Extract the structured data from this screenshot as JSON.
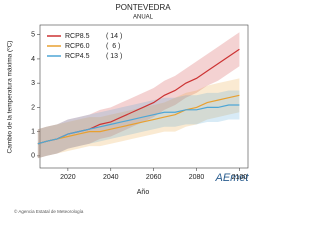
{
  "chart_data": {
    "type": "line",
    "title": "PONTEVEDRA",
    "subtitle": "ANUAL",
    "y_label": "Cambio de la temperatura máxima (ºC)",
    "x_label": "Año",
    "x": [
      2006,
      2010,
      2015,
      2020,
      2025,
      2030,
      2035,
      2040,
      2045,
      2050,
      2055,
      2060,
      2065,
      2070,
      2075,
      2080,
      2085,
      2090,
      2095,
      2100
    ],
    "xlim": [
      2007,
      2104
    ],
    "xticks": [
      2020,
      2040,
      2060,
      2080,
      2100
    ],
    "ylim": [
      -0.5,
      5.4
    ],
    "yticks": [
      0,
      1,
      2,
      3,
      4,
      5
    ],
    "series": [
      {
        "name": "RCP8.5",
        "count_label": "( 14 )",
        "color": "#cc3333",
        "values": [
          0.5,
          0.6,
          0.7,
          0.9,
          1.0,
          1.1,
          1.3,
          1.4,
          1.6,
          1.8,
          2.0,
          2.2,
          2.5,
          2.7,
          3.0,
          3.2,
          3.5,
          3.8,
          4.1,
          4.4
        ],
        "upper": [
          1.1,
          1.2,
          1.3,
          1.5,
          1.6,
          1.7,
          1.9,
          2.0,
          2.2,
          2.4,
          2.6,
          2.8,
          3.1,
          3.3,
          3.6,
          3.9,
          4.2,
          4.5,
          4.8,
          5.1
        ],
        "lower": [
          -0.1,
          0.0,
          0.1,
          0.3,
          0.4,
          0.5,
          0.7,
          0.8,
          1.0,
          1.2,
          1.4,
          1.6,
          1.9,
          2.1,
          2.4,
          2.6,
          2.9,
          3.1,
          3.4,
          3.7
        ]
      },
      {
        "name": "RCP6.0",
        "count_label": "(  6 )",
        "color": "#e8a030",
        "values": [
          0.5,
          0.6,
          0.7,
          0.8,
          0.9,
          1.0,
          1.0,
          1.1,
          1.2,
          1.3,
          1.4,
          1.5,
          1.6,
          1.7,
          1.9,
          2.0,
          2.2,
          2.3,
          2.4,
          2.5
        ],
        "upper": [
          1.1,
          1.2,
          1.3,
          1.4,
          1.5,
          1.6,
          1.6,
          1.7,
          1.8,
          1.9,
          2.0,
          2.1,
          2.2,
          2.4,
          2.6,
          2.7,
          2.9,
          3.0,
          3.1,
          3.2
        ],
        "lower": [
          -0.1,
          0.0,
          0.1,
          0.2,
          0.3,
          0.4,
          0.4,
          0.5,
          0.6,
          0.7,
          0.8,
          0.9,
          1.0,
          1.0,
          1.2,
          1.3,
          1.5,
          1.6,
          1.7,
          1.8
        ]
      },
      {
        "name": "RCP4.5",
        "count_label": "( 13 )",
        "color": "#4da6d6",
        "values": [
          0.5,
          0.6,
          0.7,
          0.9,
          1.0,
          1.1,
          1.2,
          1.3,
          1.4,
          1.5,
          1.6,
          1.7,
          1.8,
          1.8,
          1.9,
          1.9,
          2.0,
          2.0,
          2.1,
          2.1
        ],
        "upper": [
          1.1,
          1.2,
          1.3,
          1.5,
          1.6,
          1.7,
          1.8,
          1.9,
          2.0,
          2.1,
          2.2,
          2.3,
          2.4,
          2.4,
          2.5,
          2.5,
          2.6,
          2.6,
          2.7,
          2.7
        ],
        "lower": [
          -0.1,
          0.0,
          0.1,
          0.3,
          0.4,
          0.5,
          0.6,
          0.7,
          0.8,
          0.9,
          1.0,
          1.1,
          1.2,
          1.2,
          1.3,
          1.3,
          1.4,
          1.4,
          1.5,
          1.5
        ]
      }
    ],
    "logo": "AEmet",
    "footer": "© Agencia Estatal de Meteorología"
  }
}
